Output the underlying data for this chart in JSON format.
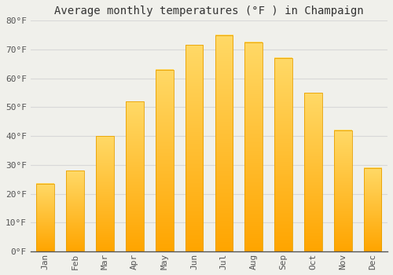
{
  "title": "Average monthly temperatures (°F ) in Champaign",
  "months": [
    "Jan",
    "Feb",
    "Mar",
    "Apr",
    "May",
    "Jun",
    "Jul",
    "Aug",
    "Sep",
    "Oct",
    "Nov",
    "Dec"
  ],
  "values": [
    23.5,
    28.0,
    40.0,
    52.0,
    63.0,
    71.5,
    75.0,
    72.5,
    67.0,
    55.0,
    42.0,
    29.0
  ],
  "bar_color_top": "#FFD966",
  "bar_color_bottom": "#FFA500",
  "bar_edge_color": "#E8A000",
  "background_color": "#f0f0eb",
  "plot_bg_color": "#f0f0eb",
  "grid_color": "#d8d8d8",
  "ylim": [
    0,
    80
  ],
  "yticks": [
    0,
    10,
    20,
    30,
    40,
    50,
    60,
    70,
    80
  ],
  "title_fontsize": 10,
  "tick_fontsize": 8,
  "font_family": "monospace"
}
